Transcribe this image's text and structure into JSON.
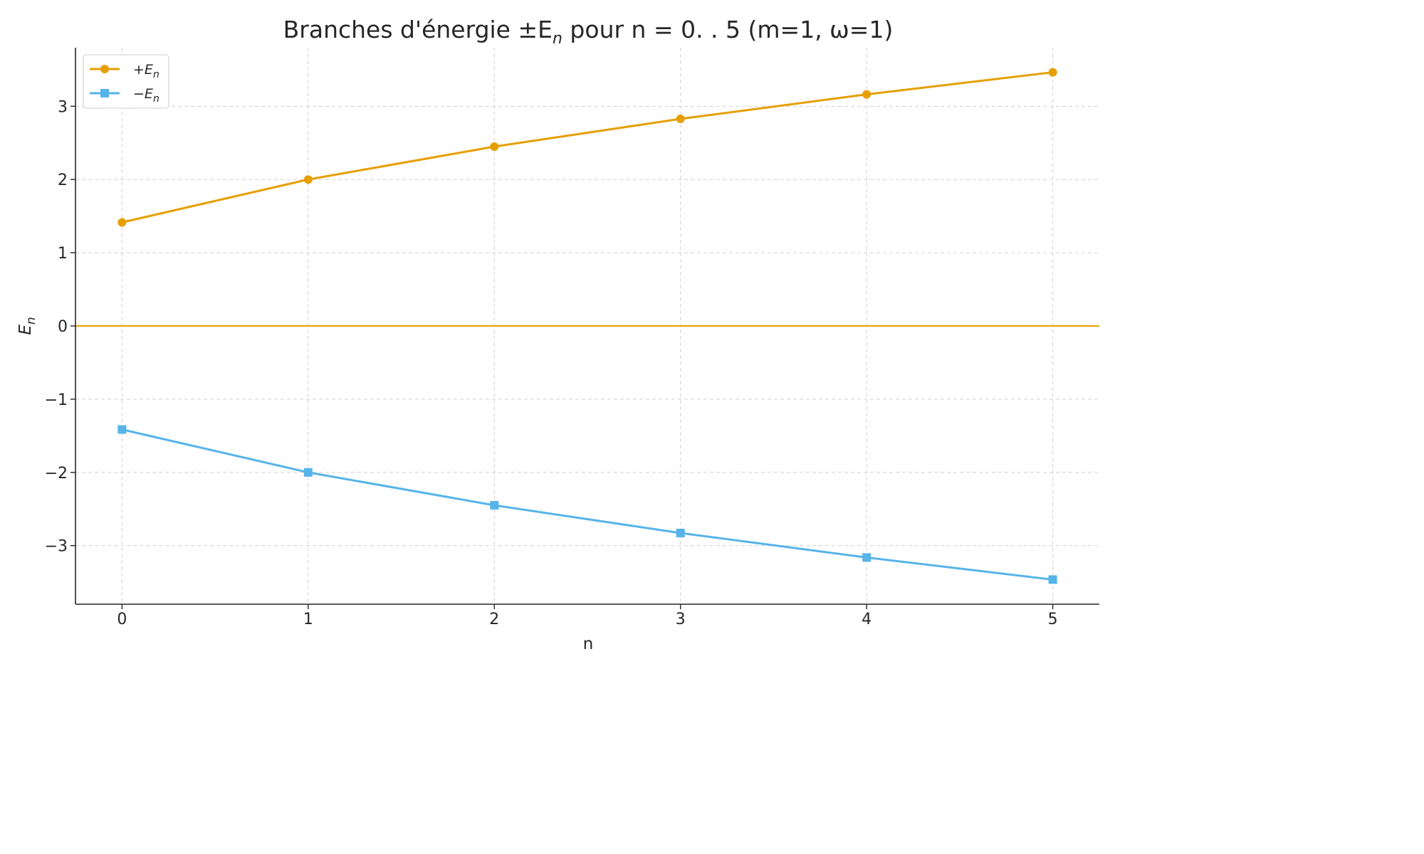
{
  "chart_data": {
    "type": "line",
    "title": "Branches d'énergie ±E",
    "title_sub": "n",
    "title_rest": " pour n = 0. . 5 (m=1, ω=1)",
    "xlabel": "n",
    "ylabel": "E",
    "ylabel_sub": "n",
    "x": [
      0,
      1,
      2,
      3,
      4,
      5
    ],
    "xlim": [
      -0.25,
      5.25
    ],
    "ylim": [
      -3.8,
      3.8
    ],
    "xticks": [
      0,
      1,
      2,
      3,
      4,
      5
    ],
    "yticks": [
      -3,
      -2,
      -1,
      0,
      1,
      2,
      3
    ],
    "ytick_labels": [
      "−3",
      "−2",
      "−1",
      "0",
      "1",
      "2",
      "3"
    ],
    "grid": true,
    "legend_position": "top-left",
    "hline": {
      "y": 0,
      "color": "#e69f00"
    },
    "series": [
      {
        "name": "+E",
        "name_sub": "n",
        "color": "#e69f00",
        "marker": "circle",
        "values": [
          1.414,
          2.0,
          2.449,
          2.828,
          3.162,
          3.464
        ]
      },
      {
        "name": "−E",
        "name_sub": "n",
        "color": "#56b4e9",
        "marker": "square",
        "values": [
          -1.414,
          -2.0,
          -2.449,
          -2.828,
          -3.162,
          -3.464
        ]
      }
    ]
  }
}
